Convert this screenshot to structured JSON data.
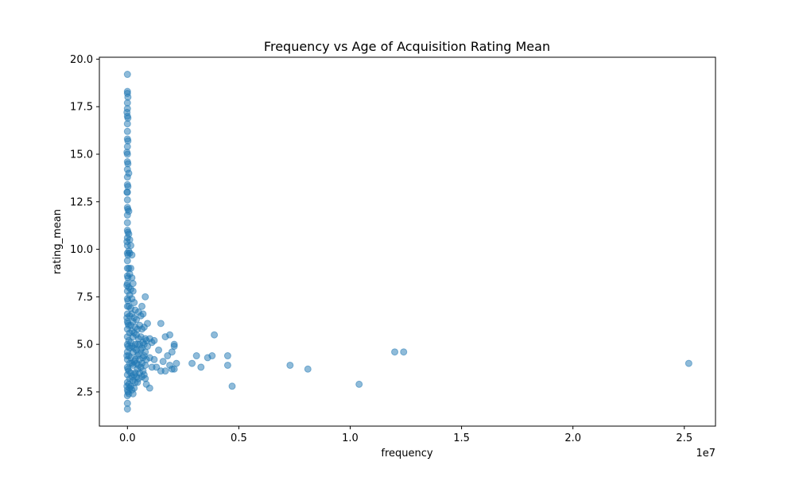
{
  "chart_data": {
    "type": "scatter",
    "title": "Frequency vs Age of Acquisition Rating Mean",
    "xlabel": "frequency",
    "ylabel": "rating_mean",
    "x_offset_label": "1e7",
    "xlim": [
      -1260000,
      26400000
    ],
    "ylim": [
      0.7,
      20.1
    ],
    "x_ticks": [
      0,
      5000000,
      10000000,
      15000000,
      20000000,
      25000000
    ],
    "x_tick_labels": [
      "0.0",
      "0.5",
      "1.0",
      "1.5",
      "2.0",
      "2.5"
    ],
    "y_ticks": [
      2.5,
      5.0,
      7.5,
      10.0,
      12.5,
      15.0,
      17.5,
      20.0
    ],
    "y_tick_labels": [
      "2.5",
      "5.0",
      "7.5",
      "10.0",
      "12.5",
      "15.0",
      "17.5",
      "20.0"
    ],
    "grid": false,
    "marker_color": "#1f77b4",
    "marker_alpha": 0.5,
    "series": [
      {
        "values": [
          [
            0,
            19.2
          ],
          [
            0,
            18.3
          ],
          [
            0,
            18.2
          ],
          [
            0,
            17.7
          ],
          [
            0,
            17.4
          ],
          [
            0,
            17.0
          ],
          [
            0,
            16.6
          ],
          [
            0,
            16.2
          ],
          [
            0,
            15.8
          ],
          [
            0,
            15.4
          ],
          [
            0,
            15.0
          ],
          [
            0,
            14.6
          ],
          [
            0,
            14.2
          ],
          [
            0,
            13.8
          ],
          [
            0,
            13.4
          ],
          [
            0,
            13.0
          ],
          [
            0,
            12.6
          ],
          [
            0,
            12.2
          ],
          [
            0,
            11.8
          ],
          [
            0,
            11.4
          ],
          [
            0,
            11.0
          ],
          [
            0,
            10.6
          ],
          [
            0,
            10.2
          ],
          [
            0,
            9.8
          ],
          [
            0,
            9.4
          ],
          [
            0,
            9.0
          ],
          [
            0,
            8.6
          ],
          [
            0,
            8.2
          ],
          [
            0,
            7.8
          ],
          [
            0,
            7.4
          ],
          [
            0,
            7.0
          ],
          [
            0,
            6.6
          ],
          [
            0,
            6.2
          ],
          [
            0,
            5.8
          ],
          [
            0,
            5.4
          ],
          [
            0,
            5.0
          ],
          [
            0,
            4.6
          ],
          [
            0,
            4.2
          ],
          [
            0,
            3.8
          ],
          [
            0,
            3.4
          ],
          [
            0,
            3.0
          ],
          [
            0,
            2.6
          ],
          [
            0,
            2.3
          ],
          [
            0,
            1.9
          ],
          [
            0,
            1.6
          ],
          [
            20000,
            18.0
          ],
          [
            20000,
            16.9
          ],
          [
            20000,
            15.7
          ],
          [
            20000,
            14.5
          ],
          [
            20000,
            13.3
          ],
          [
            20000,
            12.1
          ],
          [
            20000,
            10.9
          ],
          [
            20000,
            9.7
          ],
          [
            20000,
            8.5
          ],
          [
            20000,
            7.3
          ],
          [
            20000,
            6.1
          ],
          [
            20000,
            4.9
          ],
          [
            20000,
            3.7
          ],
          [
            20000,
            2.5
          ],
          [
            -20000,
            17.2
          ],
          [
            -20000,
            15.1
          ],
          [
            -20000,
            13.0
          ],
          [
            -20000,
            10.4
          ],
          [
            -20000,
            8.1
          ],
          [
            -20000,
            6.4
          ],
          [
            -20000,
            4.4
          ],
          [
            -20000,
            2.8
          ],
          [
            60000,
            14.0
          ],
          [
            60000,
            12.0
          ],
          [
            60000,
            10.8
          ],
          [
            60000,
            9.9
          ],
          [
            60000,
            9.0
          ],
          [
            60000,
            8.0
          ],
          [
            60000,
            7.0
          ],
          [
            60000,
            6.0
          ],
          [
            60000,
            5.2
          ],
          [
            60000,
            4.4
          ],
          [
            60000,
            3.6
          ],
          [
            60000,
            2.9
          ],
          [
            60000,
            2.4
          ],
          [
            100000,
            10.5
          ],
          [
            100000,
            9.8
          ],
          [
            100000,
            8.7
          ],
          [
            100000,
            7.6
          ],
          [
            100000,
            6.5
          ],
          [
            100000,
            5.6
          ],
          [
            100000,
            4.8
          ],
          [
            100000,
            4.0
          ],
          [
            100000,
            3.2
          ],
          [
            100000,
            2.7
          ],
          [
            150000,
            10.2
          ],
          [
            150000,
            9.0
          ],
          [
            150000,
            7.9
          ],
          [
            150000,
            6.9
          ],
          [
            150000,
            6.0
          ],
          [
            150000,
            5.1
          ],
          [
            150000,
            4.3
          ],
          [
            150000,
            3.5
          ],
          [
            150000,
            2.8
          ],
          [
            200000,
            9.7
          ],
          [
            200000,
            8.5
          ],
          [
            200000,
            7.4
          ],
          [
            200000,
            6.6
          ],
          [
            200000,
            5.7
          ],
          [
            200000,
            4.9
          ],
          [
            200000,
            4.0
          ],
          [
            200000,
            3.3
          ],
          [
            200000,
            2.6
          ],
          [
            250000,
            8.2
          ],
          [
            250000,
            7.8
          ],
          [
            250000,
            6.2
          ],
          [
            250000,
            5.4
          ],
          [
            250000,
            4.6
          ],
          [
            250000,
            3.9
          ],
          [
            250000,
            3.1
          ],
          [
            250000,
            2.4
          ],
          [
            300000,
            7.2
          ],
          [
            300000,
            6.4
          ],
          [
            300000,
            5.6
          ],
          [
            300000,
            4.8
          ],
          [
            300000,
            4.1
          ],
          [
            300000,
            3.4
          ],
          [
            300000,
            2.7
          ],
          [
            350000,
            6.8
          ],
          [
            350000,
            5.9
          ],
          [
            350000,
            5.0
          ],
          [
            350000,
            4.2
          ],
          [
            350000,
            3.5
          ],
          [
            350000,
            3.0
          ],
          [
            400000,
            6.3
          ],
          [
            400000,
            5.5
          ],
          [
            400000,
            4.7
          ],
          [
            400000,
            4.0
          ],
          [
            400000,
            3.3
          ],
          [
            450000,
            5.8
          ],
          [
            450000,
            5.0
          ],
          [
            450000,
            4.4
          ],
          [
            450000,
            3.7
          ],
          [
            450000,
            3.0
          ],
          [
            500000,
            6.7
          ],
          [
            500000,
            5.3
          ],
          [
            500000,
            4.5
          ],
          [
            500000,
            3.9
          ],
          [
            500000,
            3.2
          ],
          [
            550000,
            6.0
          ],
          [
            550000,
            5.0
          ],
          [
            550000,
            4.2
          ],
          [
            550000,
            3.5
          ],
          [
            600000,
            6.5
          ],
          [
            600000,
            5.4
          ],
          [
            600000,
            4.7
          ],
          [
            600000,
            3.8
          ],
          [
            650000,
            7.0
          ],
          [
            650000,
            5.8
          ],
          [
            650000,
            4.8
          ],
          [
            650000,
            4.0
          ],
          [
            650000,
            3.3
          ],
          [
            700000,
            6.6
          ],
          [
            700000,
            5.1
          ],
          [
            700000,
            4.3
          ],
          [
            700000,
            3.6
          ],
          [
            750000,
            5.9
          ],
          [
            750000,
            5.0
          ],
          [
            750000,
            4.4
          ],
          [
            750000,
            3.4
          ],
          [
            800000,
            7.5
          ],
          [
            800000,
            5.3
          ],
          [
            800000,
            4.6
          ],
          [
            800000,
            3.9
          ],
          [
            800000,
            3.2
          ],
          [
            850000,
            5.2
          ],
          [
            850000,
            4.2
          ],
          [
            850000,
            2.9
          ],
          [
            900000,
            6.1
          ],
          [
            900000,
            4.9
          ],
          [
            1000000,
            5.3
          ],
          [
            1000000,
            4.3
          ],
          [
            1000000,
            2.7
          ],
          [
            1100000,
            5.1
          ],
          [
            1100000,
            3.8
          ],
          [
            1200000,
            5.2
          ],
          [
            1200000,
            4.2
          ],
          [
            1300000,
            3.8
          ],
          [
            1400000,
            4.7
          ],
          [
            1500000,
            6.1
          ],
          [
            1500000,
            3.6
          ],
          [
            1600000,
            4.1
          ],
          [
            1700000,
            5.4
          ],
          [
            1700000,
            3.6
          ],
          [
            1800000,
            4.4
          ],
          [
            1900000,
            5.5
          ],
          [
            1900000,
            3.9
          ],
          [
            2000000,
            3.7
          ],
          [
            2000000,
            4.6
          ],
          [
            2100000,
            5.0
          ],
          [
            2100000,
            4.9
          ],
          [
            2100000,
            3.7
          ],
          [
            2200000,
            4.0
          ],
          [
            2900000,
            4.0
          ],
          [
            3100000,
            4.4
          ],
          [
            3300000,
            3.8
          ],
          [
            3600000,
            4.3
          ],
          [
            3800000,
            4.4
          ],
          [
            3900000,
            5.5
          ],
          [
            4500000,
            4.4
          ],
          [
            4500000,
            3.9
          ],
          [
            4700000,
            2.8
          ],
          [
            7300000,
            3.9
          ],
          [
            8100000,
            3.7
          ],
          [
            10400000,
            2.9
          ],
          [
            12000000,
            4.6
          ],
          [
            12400000,
            4.6
          ],
          [
            25200000,
            4.0
          ]
        ]
      }
    ]
  }
}
